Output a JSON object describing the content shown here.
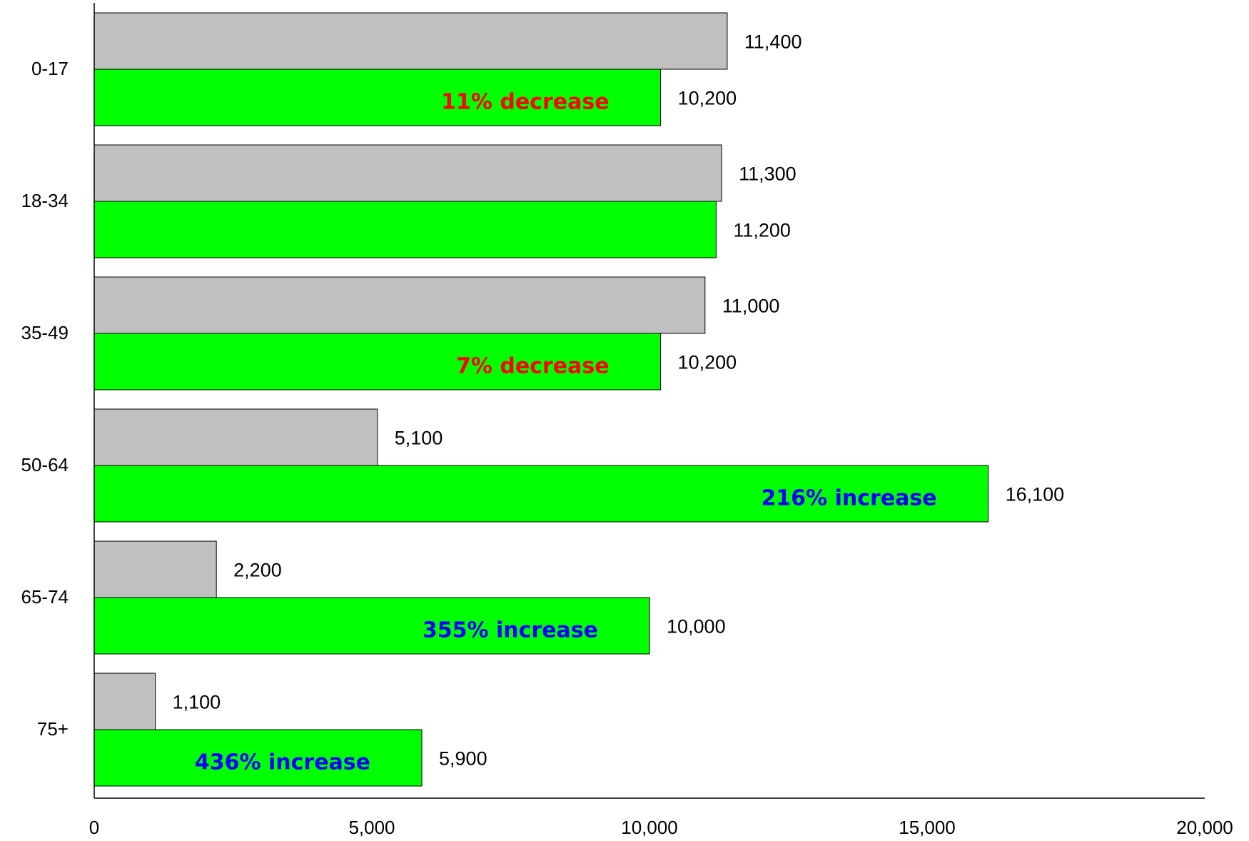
{
  "chart_data": {
    "type": "bar",
    "orientation": "horizontal",
    "categories": [
      "0-17",
      "18-34",
      "35-49",
      "50-64",
      "65-74",
      "75+"
    ],
    "series": [
      {
        "color": "#c0c0c0",
        "values": [
          11400,
          11300,
          11000,
          5100,
          2200,
          1100
        ],
        "value_labels": [
          "11,400",
          "11,300",
          "11,000",
          "5,100",
          "2,200",
          "1,100"
        ]
      },
      {
        "color": "#00ff00",
        "values": [
          10200,
          11200,
          10200,
          16100,
          10000,
          5900
        ],
        "value_labels": [
          "10,200",
          "11,200",
          "10,200",
          "16,100",
          "10,000",
          "5,900"
        ]
      }
    ],
    "annotations": [
      {
        "category": "0-17",
        "text": "11% decrease",
        "color": "#ff0000"
      },
      {
        "category": "18-34",
        "text": "",
        "color": "#ff0000"
      },
      {
        "category": "35-49",
        "text": "7% decrease",
        "color": "#ff0000"
      },
      {
        "category": "50-64",
        "text": "216% increase",
        "color": "#0000ff"
      },
      {
        "category": "65-74",
        "text": "355% increase",
        "color": "#0000ff"
      },
      {
        "category": "75+",
        "text": "436% increase",
        "color": "#0000ff"
      }
    ],
    "x_ticks": [
      0,
      5000,
      10000,
      15000,
      20000
    ],
    "x_tick_labels": [
      "0",
      "5,000",
      "10,000",
      "15,000",
      "20,000"
    ],
    "xlim": [
      0,
      20000
    ],
    "title": "",
    "xlabel": "",
    "ylabel": "",
    "grid": false,
    "legend": "none"
  }
}
